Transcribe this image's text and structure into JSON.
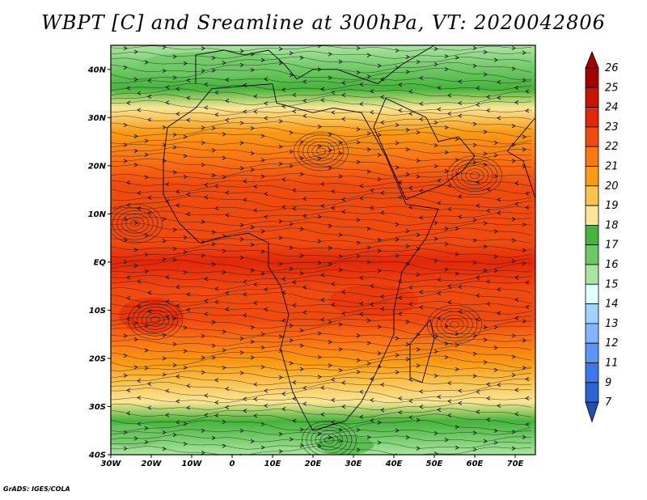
{
  "title": "WBPT [C] and Sreamline at 300hPa, VT: 2020042806",
  "credit": "GrADS: IGES/COLA",
  "map": {
    "lon_range": [
      -30,
      75
    ],
    "lat_range": [
      -40,
      45
    ],
    "lat_ticks": [
      {
        "value": 40,
        "label": "40N"
      },
      {
        "value": 30,
        "label": "30N"
      },
      {
        "value": 20,
        "label": "20N"
      },
      {
        "value": 10,
        "label": "10N"
      },
      {
        "value": 0,
        "label": "EQ"
      },
      {
        "value": -10,
        "label": "10S"
      },
      {
        "value": -20,
        "label": "20S"
      },
      {
        "value": -30,
        "label": "30S"
      },
      {
        "value": -40,
        "label": "40S"
      }
    ],
    "lon_ticks": [
      {
        "value": -30,
        "label": "30W"
      },
      {
        "value": -20,
        "label": "20W"
      },
      {
        "value": -10,
        "label": "10W"
      },
      {
        "value": 0,
        "label": "0"
      },
      {
        "value": 10,
        "label": "10E"
      },
      {
        "value": 20,
        "label": "20E"
      },
      {
        "value": 30,
        "label": "30E"
      },
      {
        "value": 40,
        "label": "40E"
      },
      {
        "value": 50,
        "label": "50E"
      },
      {
        "value": 60,
        "label": "60E"
      },
      {
        "value": 70,
        "label": "70E"
      }
    ],
    "bands": [
      {
        "lat": 45,
        "value": 16.5
      },
      {
        "lat": 40,
        "value": 17.2
      },
      {
        "lat": 36,
        "value": 18.2
      },
      {
        "lat": 32,
        "value": 19.5
      },
      {
        "lat": 27,
        "value": 21.2
      },
      {
        "lat": 22,
        "value": 22.4
      },
      {
        "lat": 16,
        "value": 23.0
      },
      {
        "lat": 10,
        "value": 23.4
      },
      {
        "lat": 4,
        "value": 23.8
      },
      {
        "lat": 0,
        "value": 24.0
      },
      {
        "lat": -6,
        "value": 23.8
      },
      {
        "lat": -12,
        "value": 23.4
      },
      {
        "lat": -17,
        "value": 22.6
      },
      {
        "lat": -21,
        "value": 21.4
      },
      {
        "lat": -25,
        "value": 20.3
      },
      {
        "lat": -29,
        "value": 19.3
      },
      {
        "lat": -33,
        "value": 18.4
      },
      {
        "lat": -36,
        "value": 17.4
      },
      {
        "lat": -40,
        "value": 16.4
      }
    ]
  },
  "colorbar": {
    "levels": [
      {
        "label": "26",
        "color": "#a50000"
      },
      {
        "label": "25",
        "color": "#c81400"
      },
      {
        "label": "24",
        "color": "#e1280a"
      },
      {
        "label": "23",
        "color": "#f04b0f"
      },
      {
        "label": "22",
        "color": "#fa7814"
      },
      {
        "label": "21",
        "color": "#fa9b14"
      },
      {
        "label": "20",
        "color": "#fac350"
      },
      {
        "label": "19",
        "color": "#fae696"
      },
      {
        "label": "18",
        "color": "#46b43c"
      },
      {
        "label": "17",
        "color": "#6ec864"
      },
      {
        "label": "16",
        "color": "#aae6a0"
      },
      {
        "label": "15",
        "color": "#e1ffff"
      },
      {
        "label": "14",
        "color": "#a0d2ff"
      },
      {
        "label": "13",
        "color": "#82b4ff"
      },
      {
        "label": "12",
        "color": "#5a96f5"
      },
      {
        "label": "11",
        "color": "#3c78eb"
      },
      {
        "label": "9",
        "color": "#2864d2"
      },
      {
        "label": "7",
        "color": "#1e50b4"
      }
    ]
  }
}
